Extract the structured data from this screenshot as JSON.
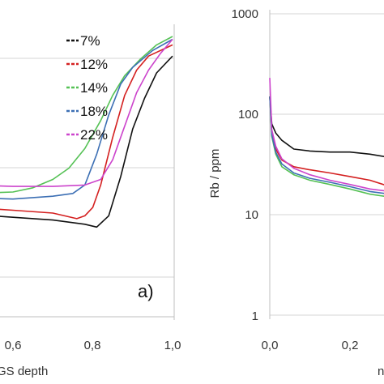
{
  "chart_data": [
    {
      "type": "line",
      "panel_label": "a)",
      "xlabel": "GS depth",
      "x_ticks": [
        "0,6",
        "0,8",
        "1,0"
      ],
      "xlim": [
        0.43,
        1.0
      ],
      "ylim": [
        0,
        1
      ],
      "grid": true,
      "legend_position": "top-right",
      "series": [
        {
          "name": "7%",
          "color": "#111111",
          "points": [
            [
              0.43,
              0.38
            ],
            [
              0.5,
              0.365
            ],
            [
              0.6,
              0.355
            ],
            [
              0.7,
              0.345
            ],
            [
              0.78,
              0.33
            ],
            [
              0.81,
              0.32
            ],
            [
              0.84,
              0.36
            ],
            [
              0.87,
              0.5
            ],
            [
              0.9,
              0.67
            ],
            [
              0.93,
              0.78
            ],
            [
              0.96,
              0.87
            ],
            [
              1.0,
              0.93
            ]
          ]
        },
        {
          "name": "12%",
          "color": "#d42020",
          "points": [
            [
              0.43,
              0.4
            ],
            [
              0.5,
              0.39
            ],
            [
              0.6,
              0.38
            ],
            [
              0.7,
              0.37
            ],
            [
              0.76,
              0.35
            ],
            [
              0.78,
              0.36
            ],
            [
              0.8,
              0.39
            ],
            [
              0.82,
              0.47
            ],
            [
              0.85,
              0.64
            ],
            [
              0.88,
              0.79
            ],
            [
              0.91,
              0.88
            ],
            [
              0.94,
              0.93
            ],
            [
              1.0,
              0.97
            ]
          ]
        },
        {
          "name": "14%",
          "color": "#55c155",
          "points": [
            [
              0.43,
              0.45
            ],
            [
              0.5,
              0.44
            ],
            [
              0.6,
              0.445
            ],
            [
              0.65,
              0.46
            ],
            [
              0.7,
              0.49
            ],
            [
              0.74,
              0.53
            ],
            [
              0.78,
              0.6
            ],
            [
              0.82,
              0.7
            ],
            [
              0.85,
              0.79
            ],
            [
              0.88,
              0.86
            ],
            [
              0.92,
              0.92
            ],
            [
              0.96,
              0.97
            ],
            [
              1.0,
              1.0
            ]
          ]
        },
        {
          "name": "18%",
          "color": "#3c6fb4",
          "points": [
            [
              0.43,
              0.43
            ],
            [
              0.5,
              0.425
            ],
            [
              0.6,
              0.42
            ],
            [
              0.7,
              0.43
            ],
            [
              0.75,
              0.44
            ],
            [
              0.78,
              0.47
            ],
            [
              0.81,
              0.58
            ],
            [
              0.84,
              0.72
            ],
            [
              0.87,
              0.83
            ],
            [
              0.9,
              0.89
            ],
            [
              0.95,
              0.95
            ],
            [
              1.0,
              0.99
            ]
          ]
        },
        {
          "name": "22%",
          "color": "#cc44cc",
          "points": [
            [
              0.43,
              0.475
            ],
            [
              0.5,
              0.47
            ],
            [
              0.6,
              0.465
            ],
            [
              0.7,
              0.465
            ],
            [
              0.78,
              0.47
            ],
            [
              0.82,
              0.49
            ],
            [
              0.85,
              0.56
            ],
            [
              0.88,
              0.68
            ],
            [
              0.91,
              0.8
            ],
            [
              0.94,
              0.88
            ],
            [
              0.97,
              0.94
            ],
            [
              1.0,
              0.99
            ]
          ]
        }
      ]
    },
    {
      "type": "line",
      "ylabel": "Rb / ppm",
      "y_scale": "log",
      "ylim": [
        1,
        1000
      ],
      "y_ticks": [
        "1",
        "10",
        "100",
        "1000"
      ],
      "x_ticks": [
        "0,0",
        "0,2"
      ],
      "x_axis_cut_label": "n",
      "xlim": [
        0.0,
        0.35
      ],
      "grid": true,
      "series": [
        {
          "name": "7%",
          "color": "#111111",
          "points": [
            [
              0.0,
              150
            ],
            [
              0.005,
              80
            ],
            [
              0.015,
              65
            ],
            [
              0.03,
              55
            ],
            [
              0.06,
              45
            ],
            [
              0.1,
              43
            ],
            [
              0.15,
              42
            ],
            [
              0.2,
              42
            ],
            [
              0.25,
              40
            ],
            [
              0.3,
              37
            ],
            [
              0.35,
              35
            ]
          ]
        },
        {
          "name": "12%",
          "color": "#d42020",
          "points": [
            [
              0.0,
              150
            ],
            [
              0.005,
              65
            ],
            [
              0.015,
              45
            ],
            [
              0.03,
              35
            ],
            [
              0.06,
              30
            ],
            [
              0.1,
              28
            ],
            [
              0.15,
              26
            ],
            [
              0.2,
              24
            ],
            [
              0.25,
              22
            ],
            [
              0.3,
              19
            ],
            [
              0.35,
              18
            ]
          ]
        },
        {
          "name": "14%",
          "color": "#55c155",
          "points": [
            [
              0.0,
              150
            ],
            [
              0.005,
              60
            ],
            [
              0.015,
              40
            ],
            [
              0.03,
              30
            ],
            [
              0.06,
              25
            ],
            [
              0.1,
              22
            ],
            [
              0.15,
              20
            ],
            [
              0.2,
              18
            ],
            [
              0.25,
              16
            ],
            [
              0.3,
              15
            ],
            [
              0.35,
              14
            ]
          ]
        },
        {
          "name": "18%",
          "color": "#3c6fb4",
          "points": [
            [
              0.0,
              150
            ],
            [
              0.005,
              62
            ],
            [
              0.015,
              42
            ],
            [
              0.03,
              32
            ],
            [
              0.06,
              26
            ],
            [
              0.1,
              23
            ],
            [
              0.15,
              21
            ],
            [
              0.2,
              19
            ],
            [
              0.25,
              17
            ],
            [
              0.3,
              16
            ],
            [
              0.35,
              15
            ]
          ]
        },
        {
          "name": "22%",
          "color": "#cc44cc",
          "points": [
            [
              0.0,
              230
            ],
            [
              0.005,
              70
            ],
            [
              0.015,
              48
            ],
            [
              0.03,
              36
            ],
            [
              0.06,
              29
            ],
            [
              0.1,
              25
            ],
            [
              0.15,
              22
            ],
            [
              0.2,
              20
            ],
            [
              0.25,
              18
            ],
            [
              0.3,
              17
            ],
            [
              0.35,
              16
            ]
          ]
        }
      ]
    }
  ]
}
